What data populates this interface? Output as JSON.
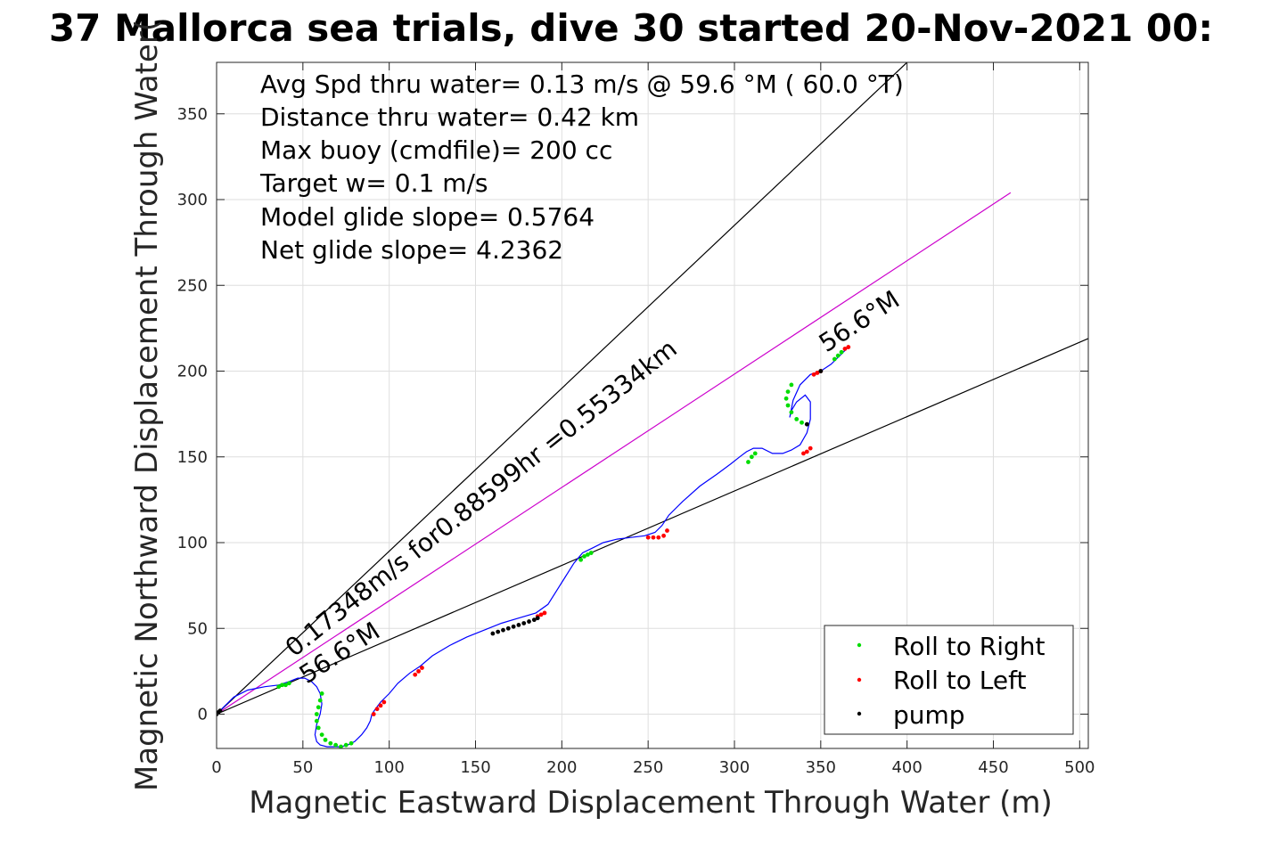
{
  "chart_data": {
    "type": "line",
    "title": "37 Mallorca sea trials, dive 30 started 20-Nov-2021 00:",
    "xlabel": "Magnetic Eastward Displacement Through Water (m)",
    "ylabel": "Magnetic Northward Displacement Through Water(",
    "xlim": [
      0,
      505
    ],
    "ylim": [
      -20,
      380
    ],
    "xticks": [
      0,
      50,
      100,
      150,
      200,
      250,
      300,
      350,
      400,
      450,
      500
    ],
    "yticks": [
      0,
      50,
      100,
      150,
      200,
      250,
      300,
      350
    ],
    "grid": true,
    "legend_placement": "bottom-right",
    "info_lines": [
      "Avg Spd thru water=  0.13 m/s @  59.6 °M ( 60.0 °T)",
      "Distance thru water=  0.42 km",
      "Max buoy (cmdfile)= 200 cc",
      "Target w= 0.1 m/s",
      "Model glide slope= 0.5764",
      "Net glide slope= 4.2362"
    ],
    "annotations": {
      "speed_label": "0.17348m/s for0.88599hr =0.55334km",
      "heading_top": "56.6°M",
      "heading_bottom": "56.6°M"
    },
    "reference_lines": [
      {
        "name": "upper bound",
        "color": "#000000",
        "x": [
          0,
          400
        ],
        "y": [
          0,
          380
        ]
      },
      {
        "name": "track line",
        "color": "#cc00cc",
        "x": [
          0,
          460
        ],
        "y": [
          0,
          304
        ]
      },
      {
        "name": "lower bound",
        "color": "#000000",
        "x": [
          0,
          505
        ],
        "y": [
          0,
          219
        ]
      }
    ],
    "trajectory": {
      "color": "#0000ff",
      "x": [
        0,
        4,
        10,
        18,
        28,
        36,
        42,
        47,
        51,
        55,
        58,
        60,
        61,
        60,
        58,
        57,
        58,
        60,
        64,
        68,
        72,
        76,
        80,
        84,
        87,
        89,
        90,
        92,
        95,
        100,
        105,
        112,
        118,
        125,
        135,
        145,
        155,
        165,
        175,
        185,
        192,
        197,
        202,
        207,
        212,
        218,
        224,
        232,
        240,
        248,
        254,
        258,
        262,
        270,
        280,
        290,
        298,
        303,
        307,
        311,
        316,
        322,
        328,
        333,
        338,
        342,
        344,
        344,
        341,
        336,
        333,
        332,
        334,
        338,
        344,
        350,
        356,
        360,
        364,
        366
      ],
      "y": [
        0,
        4,
        10,
        14,
        16,
        17,
        19,
        21,
        21,
        19,
        16,
        12,
        6,
        0,
        -6,
        -12,
        -16,
        -18,
        -19,
        -19,
        -19,
        -18,
        -16,
        -12,
        -8,
        -4,
        0,
        3,
        7,
        12,
        18,
        24,
        28,
        34,
        40,
        45,
        49,
        53,
        56,
        59,
        64,
        72,
        80,
        88,
        94,
        97,
        100,
        102,
        103,
        104,
        106,
        110,
        116,
        124,
        133,
        140,
        146,
        150,
        153,
        155,
        155,
        152,
        152,
        154,
        157,
        164,
        172,
        182,
        186,
        182,
        177,
        173,
        183,
        192,
        198,
        200,
        204,
        208,
        212,
        214
      ]
    },
    "series": [
      {
        "name": "Roll to Right",
        "color": "#00dd00",
        "x": [
          36,
          38,
          40,
          42,
          61,
          60,
          59,
          58,
          58,
          59,
          61,
          63,
          66,
          69,
          72,
          75,
          78,
          211,
          213,
          215,
          217,
          308,
          310,
          312,
          333,
          331,
          330,
          331,
          333,
          336,
          339,
          358,
          360,
          362
        ],
        "y": [
          16,
          17,
          17,
          18,
          12,
          8,
          4,
          0,
          -4,
          -8,
          -12,
          -15,
          -17,
          -18,
          -19,
          -18,
          -17,
          90,
          92,
          93,
          94,
          147,
          150,
          152,
          192,
          188,
          184,
          180,
          176,
          172,
          170,
          207,
          209,
          211
        ]
      },
      {
        "name": "Roll to Left",
        "color": "#ff0000",
        "x": [
          91,
          93,
          95,
          97,
          115,
          117,
          119,
          186,
          188,
          190,
          250,
          253,
          256,
          259,
          261,
          340,
          342,
          344,
          346,
          348,
          350,
          364,
          366
        ],
        "y": [
          0,
          3,
          5,
          7,
          23,
          25,
          27,
          57,
          58,
          59,
          103,
          103,
          103,
          104,
          107,
          152,
          153,
          155,
          198,
          199,
          200,
          213,
          214
        ]
      },
      {
        "name": "pump",
        "color": "#000000",
        "x": [
          0,
          1,
          2,
          160,
          163,
          166,
          169,
          172,
          175,
          178,
          181,
          184,
          186,
          342,
          350
        ],
        "y": [
          0,
          1,
          2,
          47,
          48,
          49,
          50,
          51,
          52,
          53,
          54,
          55,
          56,
          169,
          200
        ]
      }
    ]
  }
}
